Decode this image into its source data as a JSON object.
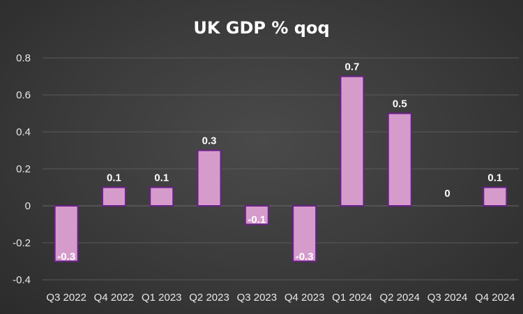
{
  "colors": {
    "bar_fill": "#d59bcb",
    "bar_stroke": "#6a1f8a",
    "text": "#ffffff",
    "gridline": "#5a5a5a"
  },
  "chart_data": {
    "type": "bar",
    "title": "UK GDP % qoq",
    "xlabel": "",
    "ylabel": "",
    "categories": [
      "Q3 2022",
      "Q4 2022",
      "Q1 2023",
      "Q2 2023",
      "Q3 2023",
      "Q4 2023",
      "Q1 2024",
      "Q2 2024",
      "Q3 2024",
      "Q4 2024"
    ],
    "values": [
      -0.3,
      0.1,
      0.1,
      0.3,
      -0.1,
      -0.3,
      0.7,
      0.5,
      0,
      0.1
    ],
    "data_labels": [
      "-0.3",
      "0.1",
      "0.1",
      "0.3",
      "-0.1",
      "-0.3",
      "0.7",
      "0.5",
      "0",
      "0.1"
    ],
    "ylim": [
      -0.4,
      0.8
    ],
    "yticks": [
      "-0.4",
      "-0.2",
      "0",
      "0.2",
      "0.4",
      "0.6",
      "0.8"
    ],
    "grid": true,
    "legend": "none"
  }
}
